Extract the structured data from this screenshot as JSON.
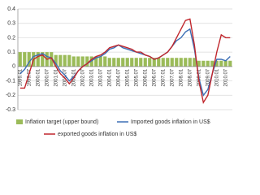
{
  "chart_data": {
    "type": "bar-line",
    "categories": [
      "1999.01",
      null,
      "1999.07",
      null,
      "2000.01",
      null,
      "2000.07",
      null,
      "2001.01",
      null,
      "2001.07",
      null,
      "2002.01",
      null,
      "2002.07",
      null,
      "2003.01",
      null,
      "2003.07",
      null,
      "2004.01",
      null,
      "2004.07",
      null,
      "2005.01",
      null,
      "2005.07",
      null,
      "2006.01",
      null,
      "2006.07",
      null,
      "2007.01",
      null,
      "2007.07",
      null,
      "2008.01",
      null,
      "2008.07",
      null,
      "2009.01",
      null,
      "2009.07",
      null,
      "2010.01",
      null,
      "2010.07",
      null
    ],
    "series": [
      {
        "name": "Inflation target (upper bound)",
        "kind": "bar",
        "color": "#9bbb59",
        "values": [
          0.1,
          0.1,
          0.1,
          0.1,
          0.1,
          0.1,
          0.1,
          0.1,
          0.08,
          0.08,
          0.08,
          0.08,
          0.07,
          0.07,
          0.07,
          0.07,
          0.07,
          0.07,
          0.07,
          0.07,
          0.06,
          0.06,
          0.06,
          0.06,
          0.06,
          0.06,
          0.06,
          0.06,
          0.06,
          0.06,
          0.06,
          0.06,
          0.06,
          0.06,
          0.06,
          0.06,
          0.06,
          0.06,
          0.06,
          0.06,
          0.04,
          0.04,
          0.04,
          0.04,
          0.04,
          0.04,
          0.04,
          0.04
        ]
      },
      {
        "name": "Imported goods inflation in US$",
        "kind": "line",
        "color": "#3d6fb5",
        "values": [
          -0.05,
          -0.02,
          0.03,
          0.07,
          0.08,
          0.09,
          0.07,
          0.06,
          0.02,
          -0.03,
          -0.06,
          -0.1,
          -0.07,
          -0.03,
          0,
          0.02,
          0.04,
          0.06,
          0.07,
          0.09,
          0.12,
          0.13,
          0.15,
          0.13,
          0.12,
          0.11,
          0.1,
          0.09,
          0.08,
          0.07,
          0.05,
          0.06,
          0.08,
          0.1,
          0.14,
          0.18,
          0.2,
          0.24,
          0.26,
          0.12,
          -0.08,
          -0.2,
          -0.16,
          -0.05,
          0.05,
          0.05,
          0.04,
          0.07
        ]
      },
      {
        "name": "exported goods inflation in US$",
        "kind": "line",
        "color": "#c0272d",
        "values": [
          -0.15,
          -0.15,
          -0.05,
          0.05,
          0.07,
          0.08,
          0.05,
          0.06,
          0,
          -0.05,
          -0.08,
          -0.12,
          -0.08,
          -0.03,
          0,
          0.02,
          0.05,
          0.07,
          0.08,
          0.1,
          0.13,
          0.14,
          0.15,
          0.14,
          0.13,
          0.12,
          0.1,
          0.1,
          0.08,
          0.07,
          0.05,
          0.06,
          0.08,
          0.1,
          0.14,
          0.2,
          0.26,
          0.32,
          0.33,
          0.15,
          -0.1,
          -0.25,
          -0.2,
          -0.05,
          0.1,
          0.22,
          0.2,
          0.2
        ]
      }
    ],
    "ylim": [
      -0.3,
      0.4
    ],
    "yticks": [
      -0.3,
      -0.2,
      -0.1,
      0,
      0.1,
      0.2,
      0.3,
      0.4
    ],
    "grid": true
  }
}
